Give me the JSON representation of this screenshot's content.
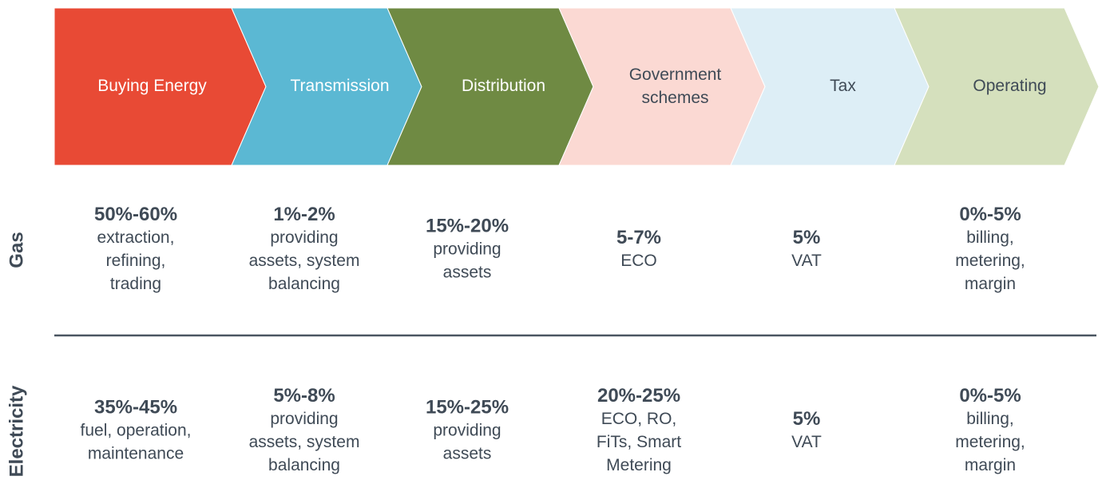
{
  "stages": [
    "Buying Energy",
    "Transmission",
    "Distribution",
    [
      "Government",
      "schemes"
    ],
    "Tax",
    "Operating"
  ],
  "rows": [
    {
      "label": "Gas",
      "cells": [
        {
          "pct": "50%-60%",
          "desc": [
            "extraction,",
            "refining,",
            "trading"
          ]
        },
        {
          "pct": "1%-2%",
          "desc": [
            "providing",
            "assets,  system",
            "balancing"
          ]
        },
        {
          "pct": "15%-20%",
          "desc": [
            "providing",
            "assets"
          ]
        },
        {
          "pct": "5-7%",
          "desc": [
            "ECO"
          ]
        },
        {
          "pct": "5%",
          "desc": [
            "VAT"
          ]
        },
        {
          "pct": "0%-5%",
          "desc": [
            "billing,",
            "metering,",
            "margin"
          ]
        }
      ]
    },
    {
      "label": "Electricity",
      "cells": [
        {
          "pct": "35%-45%",
          "desc": [
            "fuel, operation,",
            "maintenance"
          ]
        },
        {
          "pct": "5%-8%",
          "desc": [
            "providing",
            "assets, system",
            "balancing"
          ]
        },
        {
          "pct": "15%-25%",
          "desc": [
            "providing",
            "assets"
          ]
        },
        {
          "pct": "20%-25%",
          "desc": [
            "ECO, RO,",
            "FiTs, Smart",
            "Metering"
          ]
        },
        {
          "pct": "5%",
          "desc": [
            "VAT"
          ]
        },
        {
          "pct": "0%-5%",
          "desc": [
            "billing,",
            "metering,",
            "margin"
          ]
        }
      ]
    }
  ]
}
